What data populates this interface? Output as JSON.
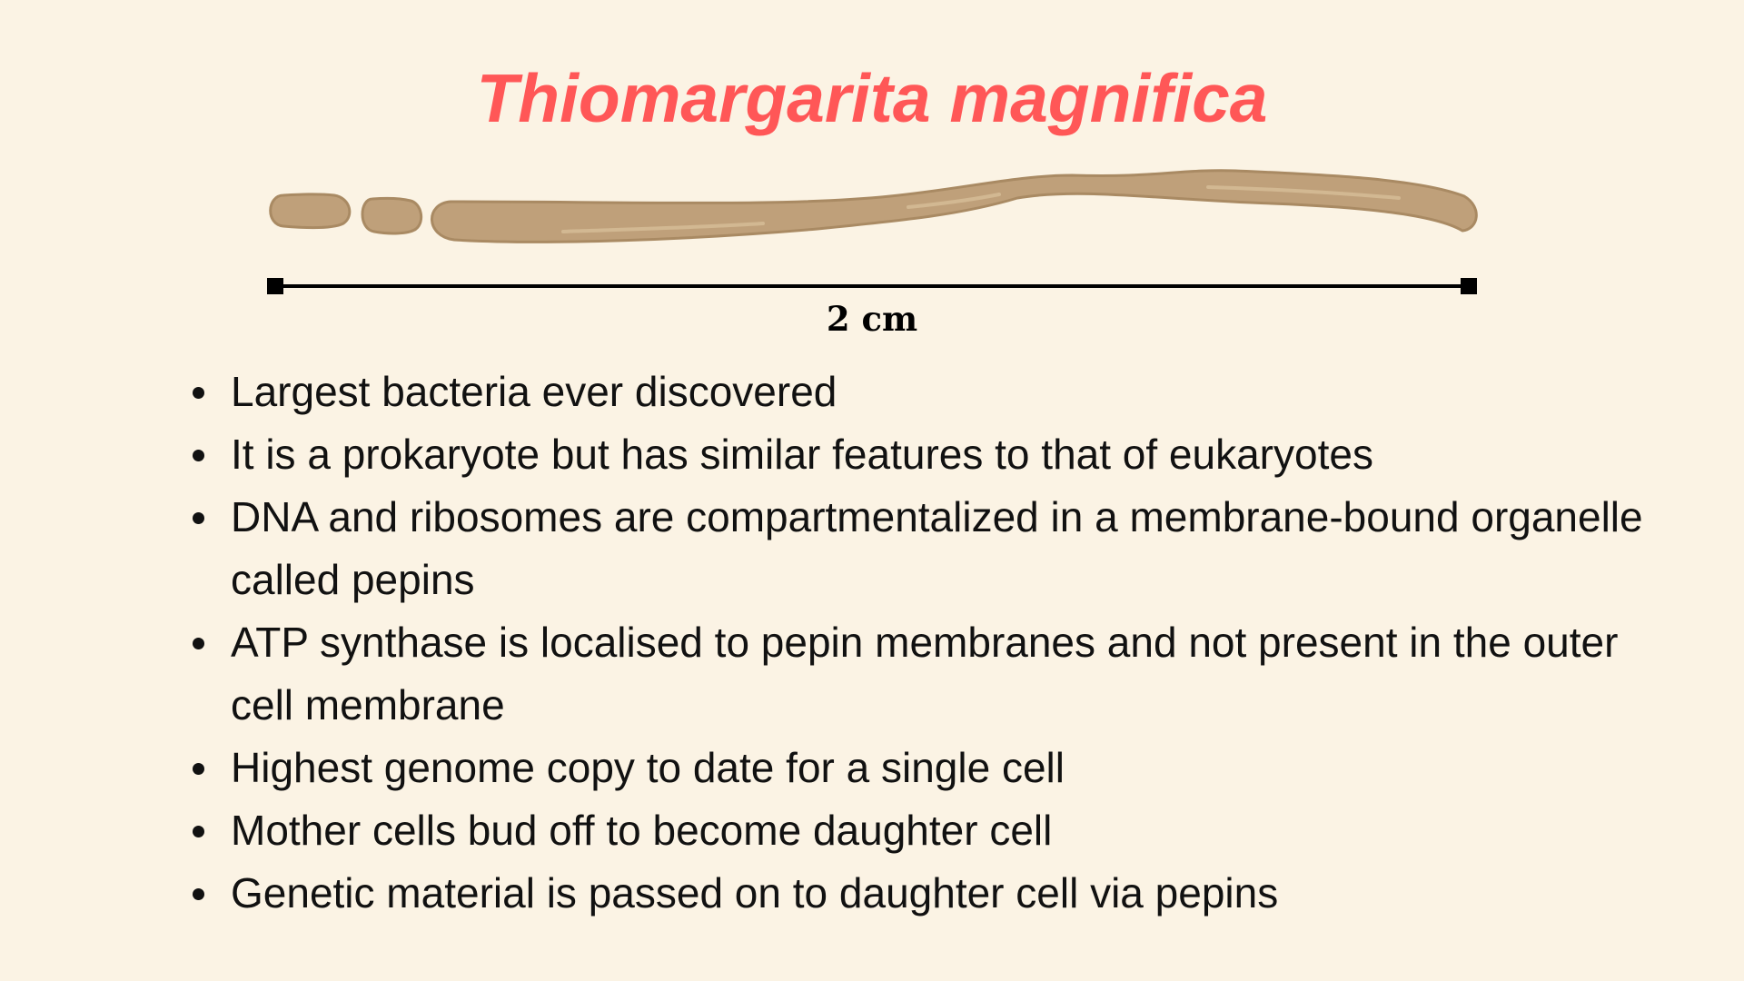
{
  "title": "Thiomargarita magnifica",
  "scale_bar": {
    "label": "2 cm"
  },
  "illustration": {
    "icon": "filamentous-bacterium-icon",
    "segments": 3,
    "fill_color": "#BFA07A",
    "stroke_color": "#A98A63"
  },
  "facts": [
    "Largest bacteria ever discovered",
    "It is a prokaryote but has similar features to that of eukaryotes",
    "DNA and ribosomes are compartmentalized in a membrane-bound organelle called pepins",
    "ATP synthase is localised to pepin membranes and not present in the outer cell membrane",
    "Highest genome copy to date for a single cell",
    "Mother cells bud off to become daughter cell",
    "Genetic material is passed on to daughter cell via pepins"
  ],
  "colors": {
    "background": "#FBF3E4",
    "title": "#FF5757",
    "text": "#111111"
  }
}
